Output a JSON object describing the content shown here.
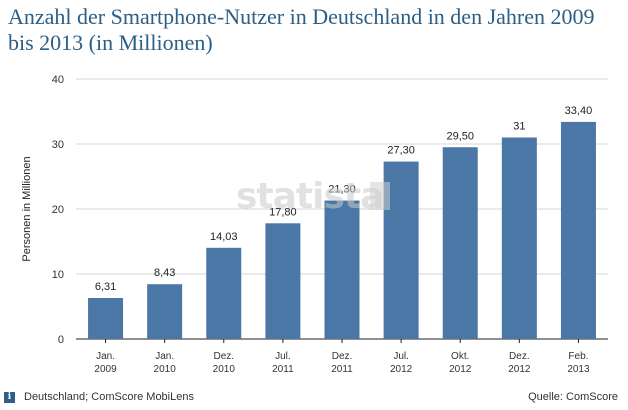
{
  "colors": {
    "bar": "#4a77a6",
    "grid": "#d6d6d6",
    "axis": "#222222",
    "title": "#2b5f86"
  },
  "footer": {
    "source_note": "Deutschland; ComScore MobiLens",
    "source_label": "Quelle: ComScore"
  },
  "watermark": "statista",
  "chart_data": {
    "type": "bar",
    "title": "Anzahl der Smartphone-Nutzer in Deutschland in den Jahren 2009 bis 2013 (in Millionen)",
    "xlabel": "",
    "ylabel": "Personen in Millionen",
    "ylim": [
      0,
      40
    ],
    "yticks": [
      0,
      10,
      20,
      30,
      40
    ],
    "grid": true,
    "categories": [
      [
        "Jan.",
        "2009"
      ],
      [
        "Jan.",
        "2010"
      ],
      [
        "Dez.",
        "2010"
      ],
      [
        "Jul.",
        "2011"
      ],
      [
        "Dez.",
        "2011"
      ],
      [
        "Jul.",
        "2012"
      ],
      [
        "Okt.",
        "2012"
      ],
      [
        "Dez.",
        "2012"
      ],
      [
        "Feb.",
        "2013"
      ]
    ],
    "values": [
      6.31,
      8.43,
      14.03,
      17.8,
      21.3,
      27.3,
      29.5,
      31,
      33.4
    ],
    "value_labels": [
      "6,31",
      "8,43",
      "14,03",
      "17,80",
      "21,30",
      "27,30",
      "29,50",
      "31",
      "33,40"
    ]
  }
}
